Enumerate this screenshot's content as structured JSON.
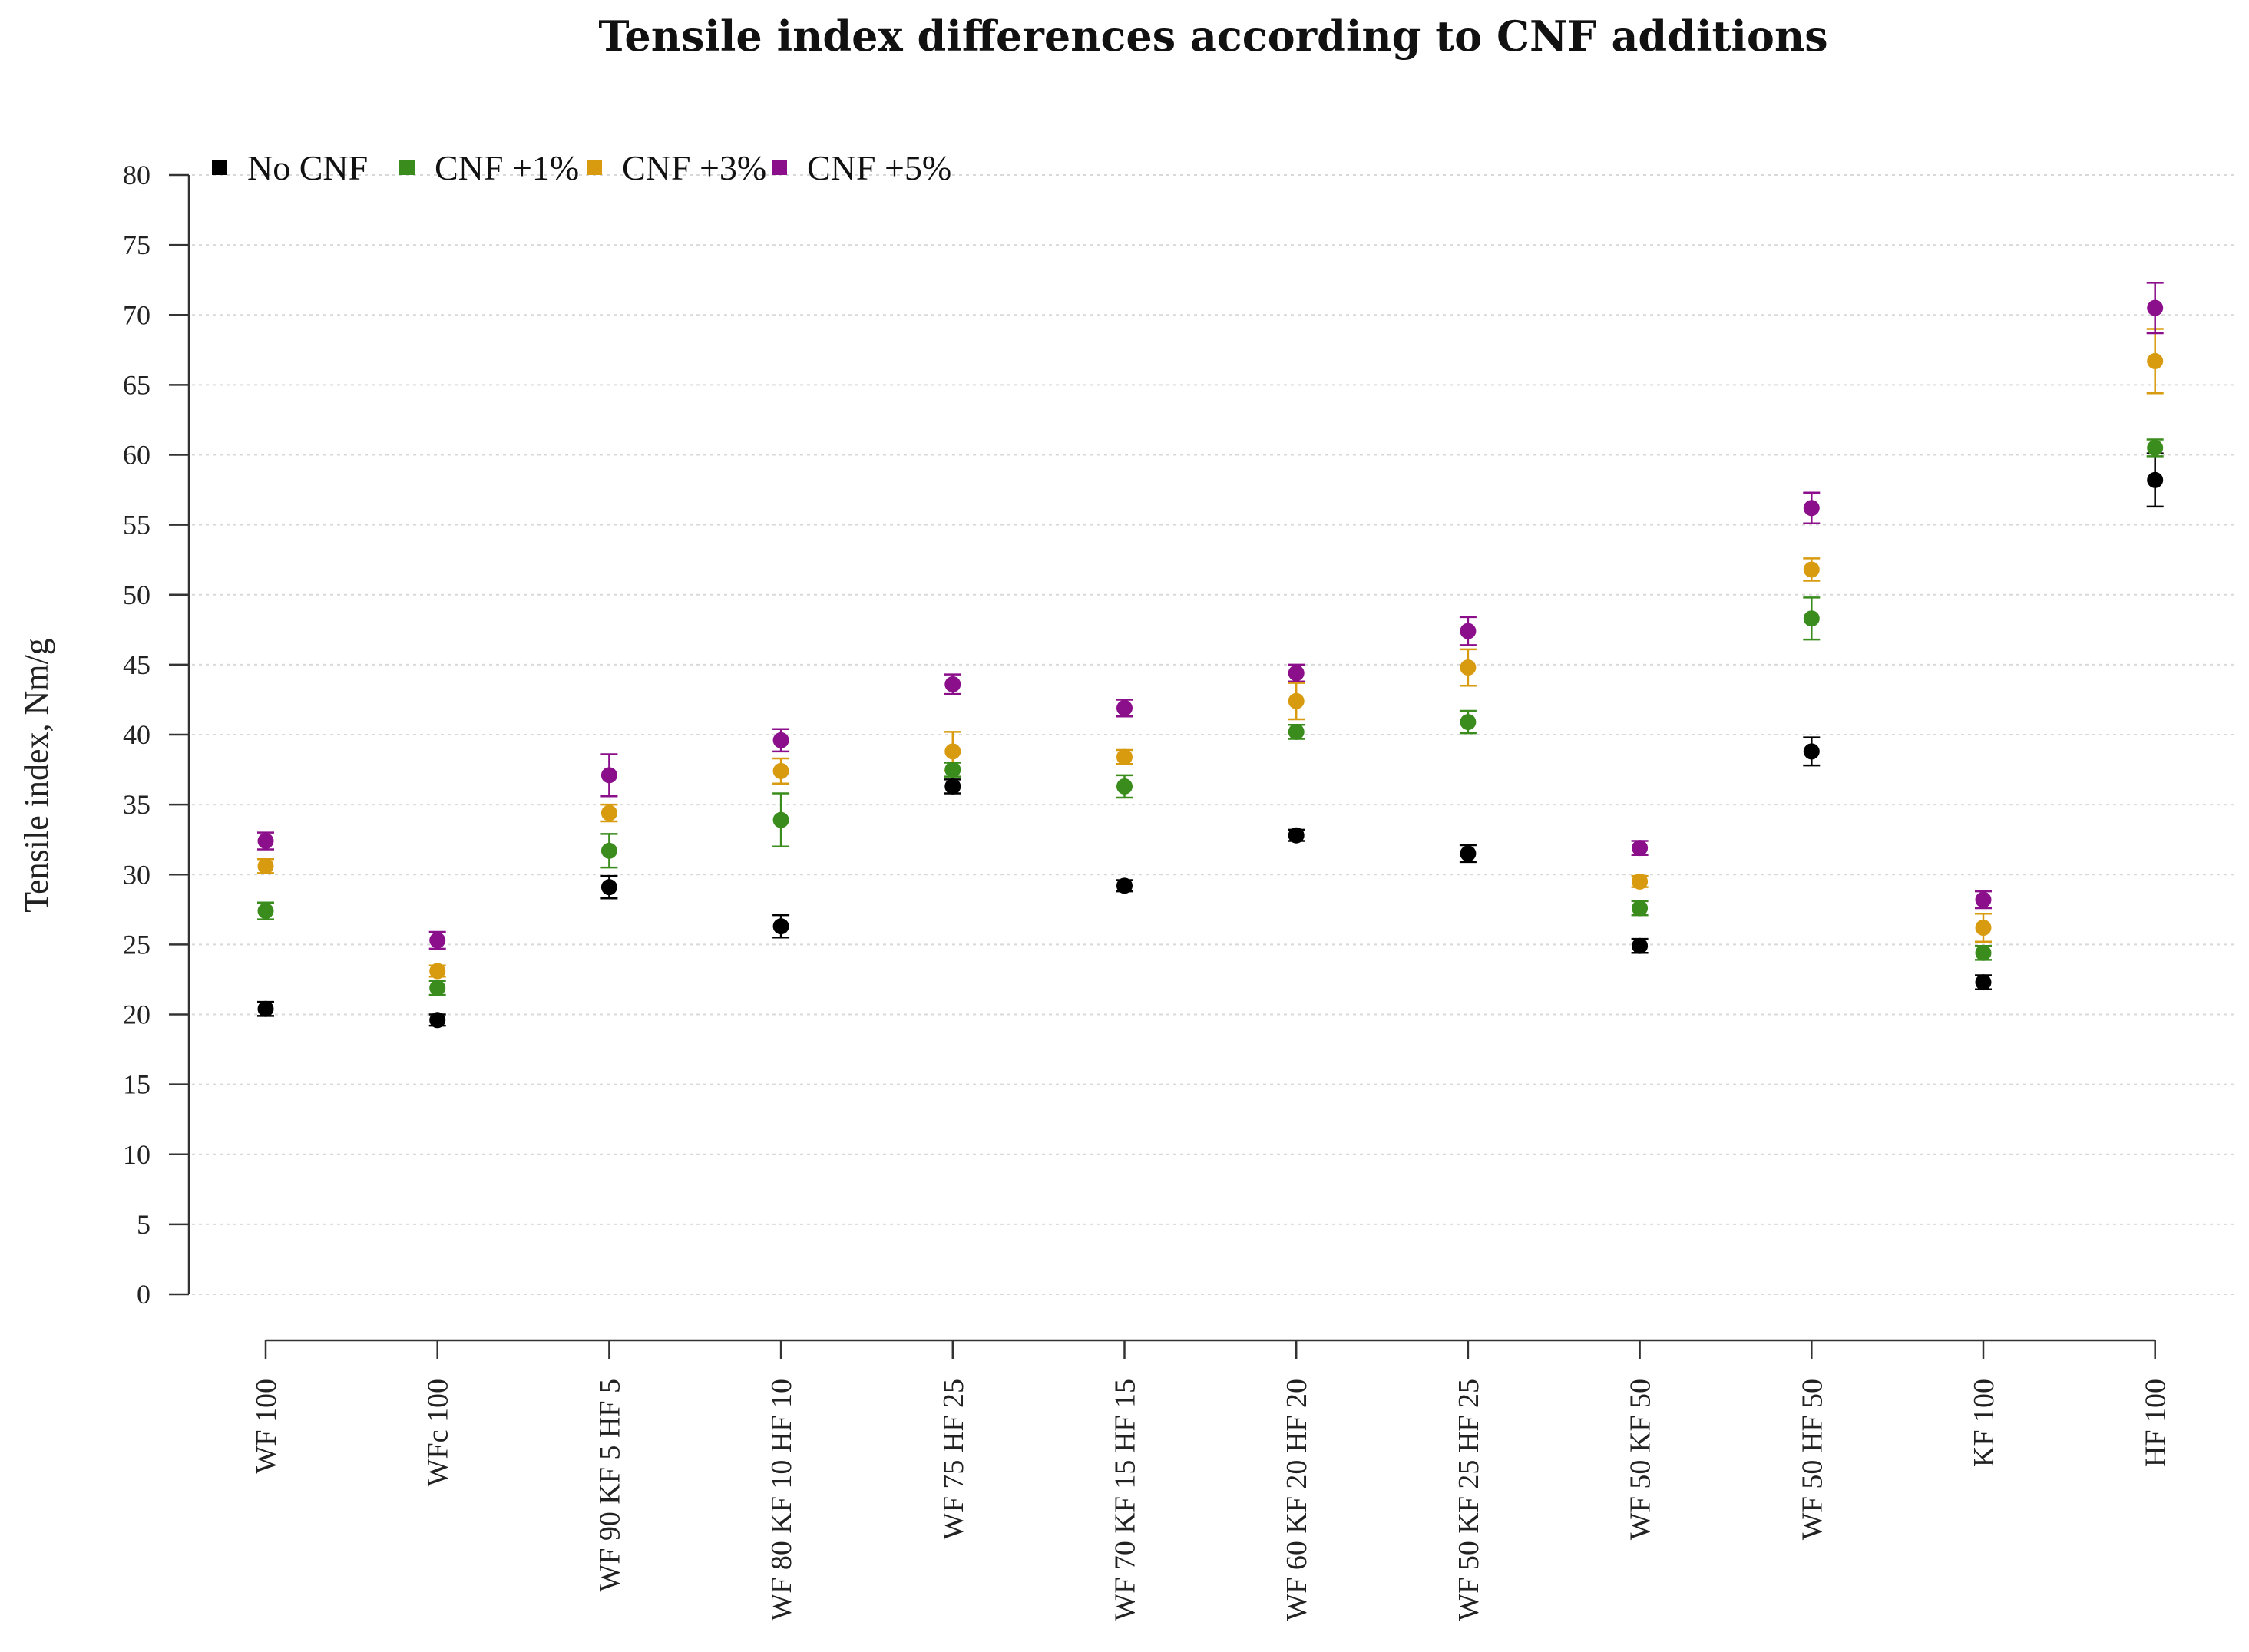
{
  "chart_data": {
    "type": "scatter",
    "title": "Tensile index differences according to CNF additions",
    "xlabel": "",
    "ylabel": "Tensile index, Nm/g",
    "ylim": [
      0,
      80
    ],
    "yticks": [
      0,
      5,
      10,
      15,
      20,
      25,
      30,
      35,
      40,
      45,
      50,
      55,
      60,
      65,
      70,
      75,
      80
    ],
    "grid": true,
    "legend_position": "top-left",
    "categories": [
      "WF 100",
      "WFc 100",
      "WF 90 KF 5 HF 5",
      "WF 80 KF 10 HF 10",
      "WF 75 HF 25",
      "WF 70 KF 15 HF 15",
      "WF 60 KF 20 HF 20",
      "WF 50 KF 25 HF 25",
      "WF 50 KF 50",
      "WF 50 HF 50",
      "KF 100",
      "HF 100"
    ],
    "series": [
      {
        "name": "No CNF",
        "color": "#000000",
        "values": [
          20.4,
          19.6,
          29.1,
          26.3,
          36.3,
          29.2,
          32.8,
          31.5,
          24.9,
          38.8,
          22.3,
          58.2
        ],
        "errors": [
          0.5,
          0.4,
          0.8,
          0.8,
          0.5,
          0.4,
          0.4,
          0.6,
          0.5,
          1.0,
          0.5,
          1.9
        ]
      },
      {
        "name": "CNF +1%",
        "color": "#3a8c1c",
        "values": [
          27.4,
          21.9,
          31.7,
          33.9,
          37.5,
          36.3,
          40.2,
          40.9,
          27.6,
          48.3,
          24.4,
          60.5
        ],
        "errors": [
          0.6,
          0.5,
          1.2,
          1.9,
          0.5,
          0.8,
          0.5,
          0.8,
          0.5,
          1.5,
          0.5,
          0.6
        ]
      },
      {
        "name": "CNF +3%",
        "color": "#d89b10",
        "values": [
          30.6,
          23.1,
          34.4,
          37.4,
          38.8,
          38.4,
          42.4,
          44.8,
          29.5,
          51.8,
          26.2,
          66.7
        ],
        "errors": [
          0.5,
          0.4,
          0.6,
          0.9,
          1.4,
          0.5,
          1.3,
          1.3,
          0.4,
          0.8,
          1.0,
          2.3
        ]
      },
      {
        "name": "CNF +5%",
        "color": "#8b0f8b",
        "values": [
          32.4,
          25.3,
          37.1,
          39.6,
          43.6,
          41.9,
          44.4,
          47.4,
          31.9,
          56.2,
          28.2,
          70.5
        ],
        "errors": [
          0.6,
          0.6,
          1.5,
          0.8,
          0.7,
          0.6,
          0.6,
          1.0,
          0.5,
          1.1,
          0.6,
          1.8
        ]
      }
    ]
  }
}
